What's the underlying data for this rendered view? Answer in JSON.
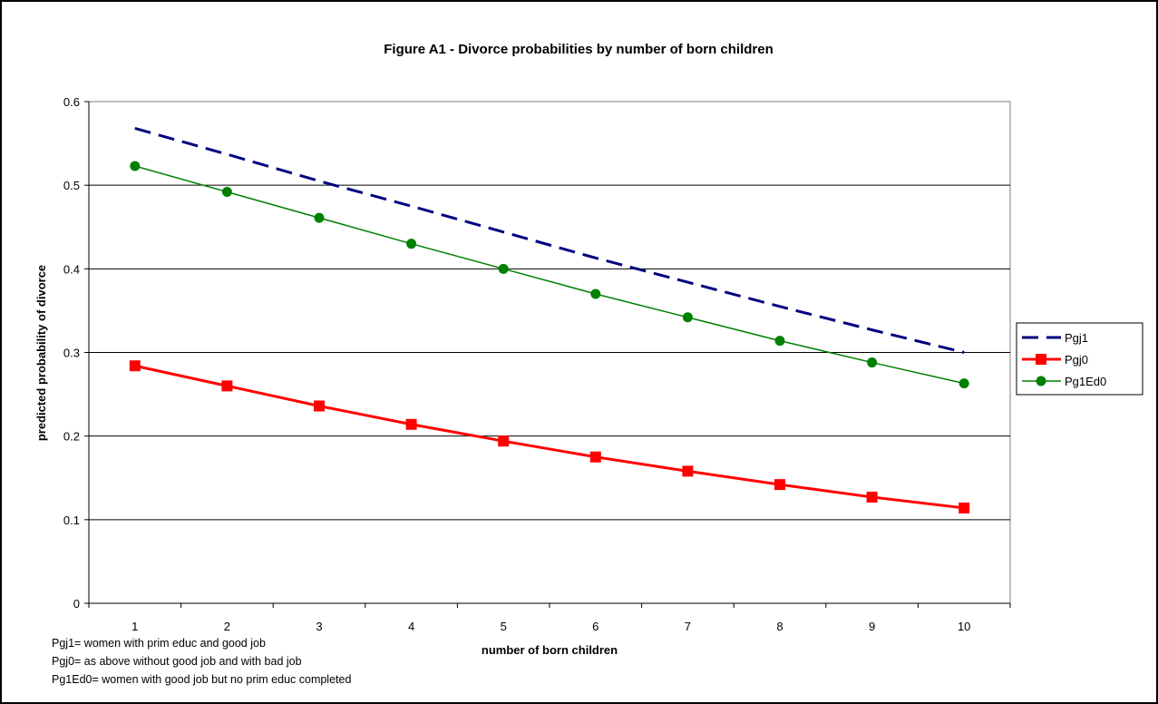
{
  "chart_data": {
    "type": "line",
    "title": "Figure A1 - Divorce probabilities by number of born children",
    "xlabel": "number of born children",
    "ylabel": "predicted probability of divorce",
    "categories": [
      "1",
      "2",
      "3",
      "4",
      "5",
      "6",
      "7",
      "8",
      "9",
      "10"
    ],
    "ylim": [
      0,
      0.6
    ],
    "yticks": [
      "0",
      "0.1",
      "0.2",
      "0.3",
      "0.4",
      "0.5",
      "0.6"
    ],
    "grid": "horizontal",
    "legend_position": "right",
    "series": [
      {
        "name": "Pgj1",
        "color": "#000080",
        "style": "dashed",
        "marker": "none",
        "values": [
          0.568,
          0.537,
          0.505,
          0.475,
          0.444,
          0.413,
          0.384,
          0.355,
          0.327,
          0.3
        ]
      },
      {
        "name": "Pgj0",
        "color": "#ff0000",
        "style": "solid",
        "marker": "square",
        "values": [
          0.284,
          0.26,
          0.236,
          0.214,
          0.194,
          0.175,
          0.158,
          0.142,
          0.127,
          0.114
        ]
      },
      {
        "name": "Pg1Ed0",
        "color": "#008000",
        "style": "solid",
        "marker": "circle",
        "values": [
          0.523,
          0.492,
          0.461,
          0.43,
          0.4,
          0.37,
          0.342,
          0.314,
          0.288,
          0.263
        ]
      }
    ],
    "notes": [
      "Pgj1= women with prim educ and good job",
      "Pgj0= as above without good job and with bad job",
      "Pg1Ed0= women with good job but no prim educ completed"
    ]
  }
}
